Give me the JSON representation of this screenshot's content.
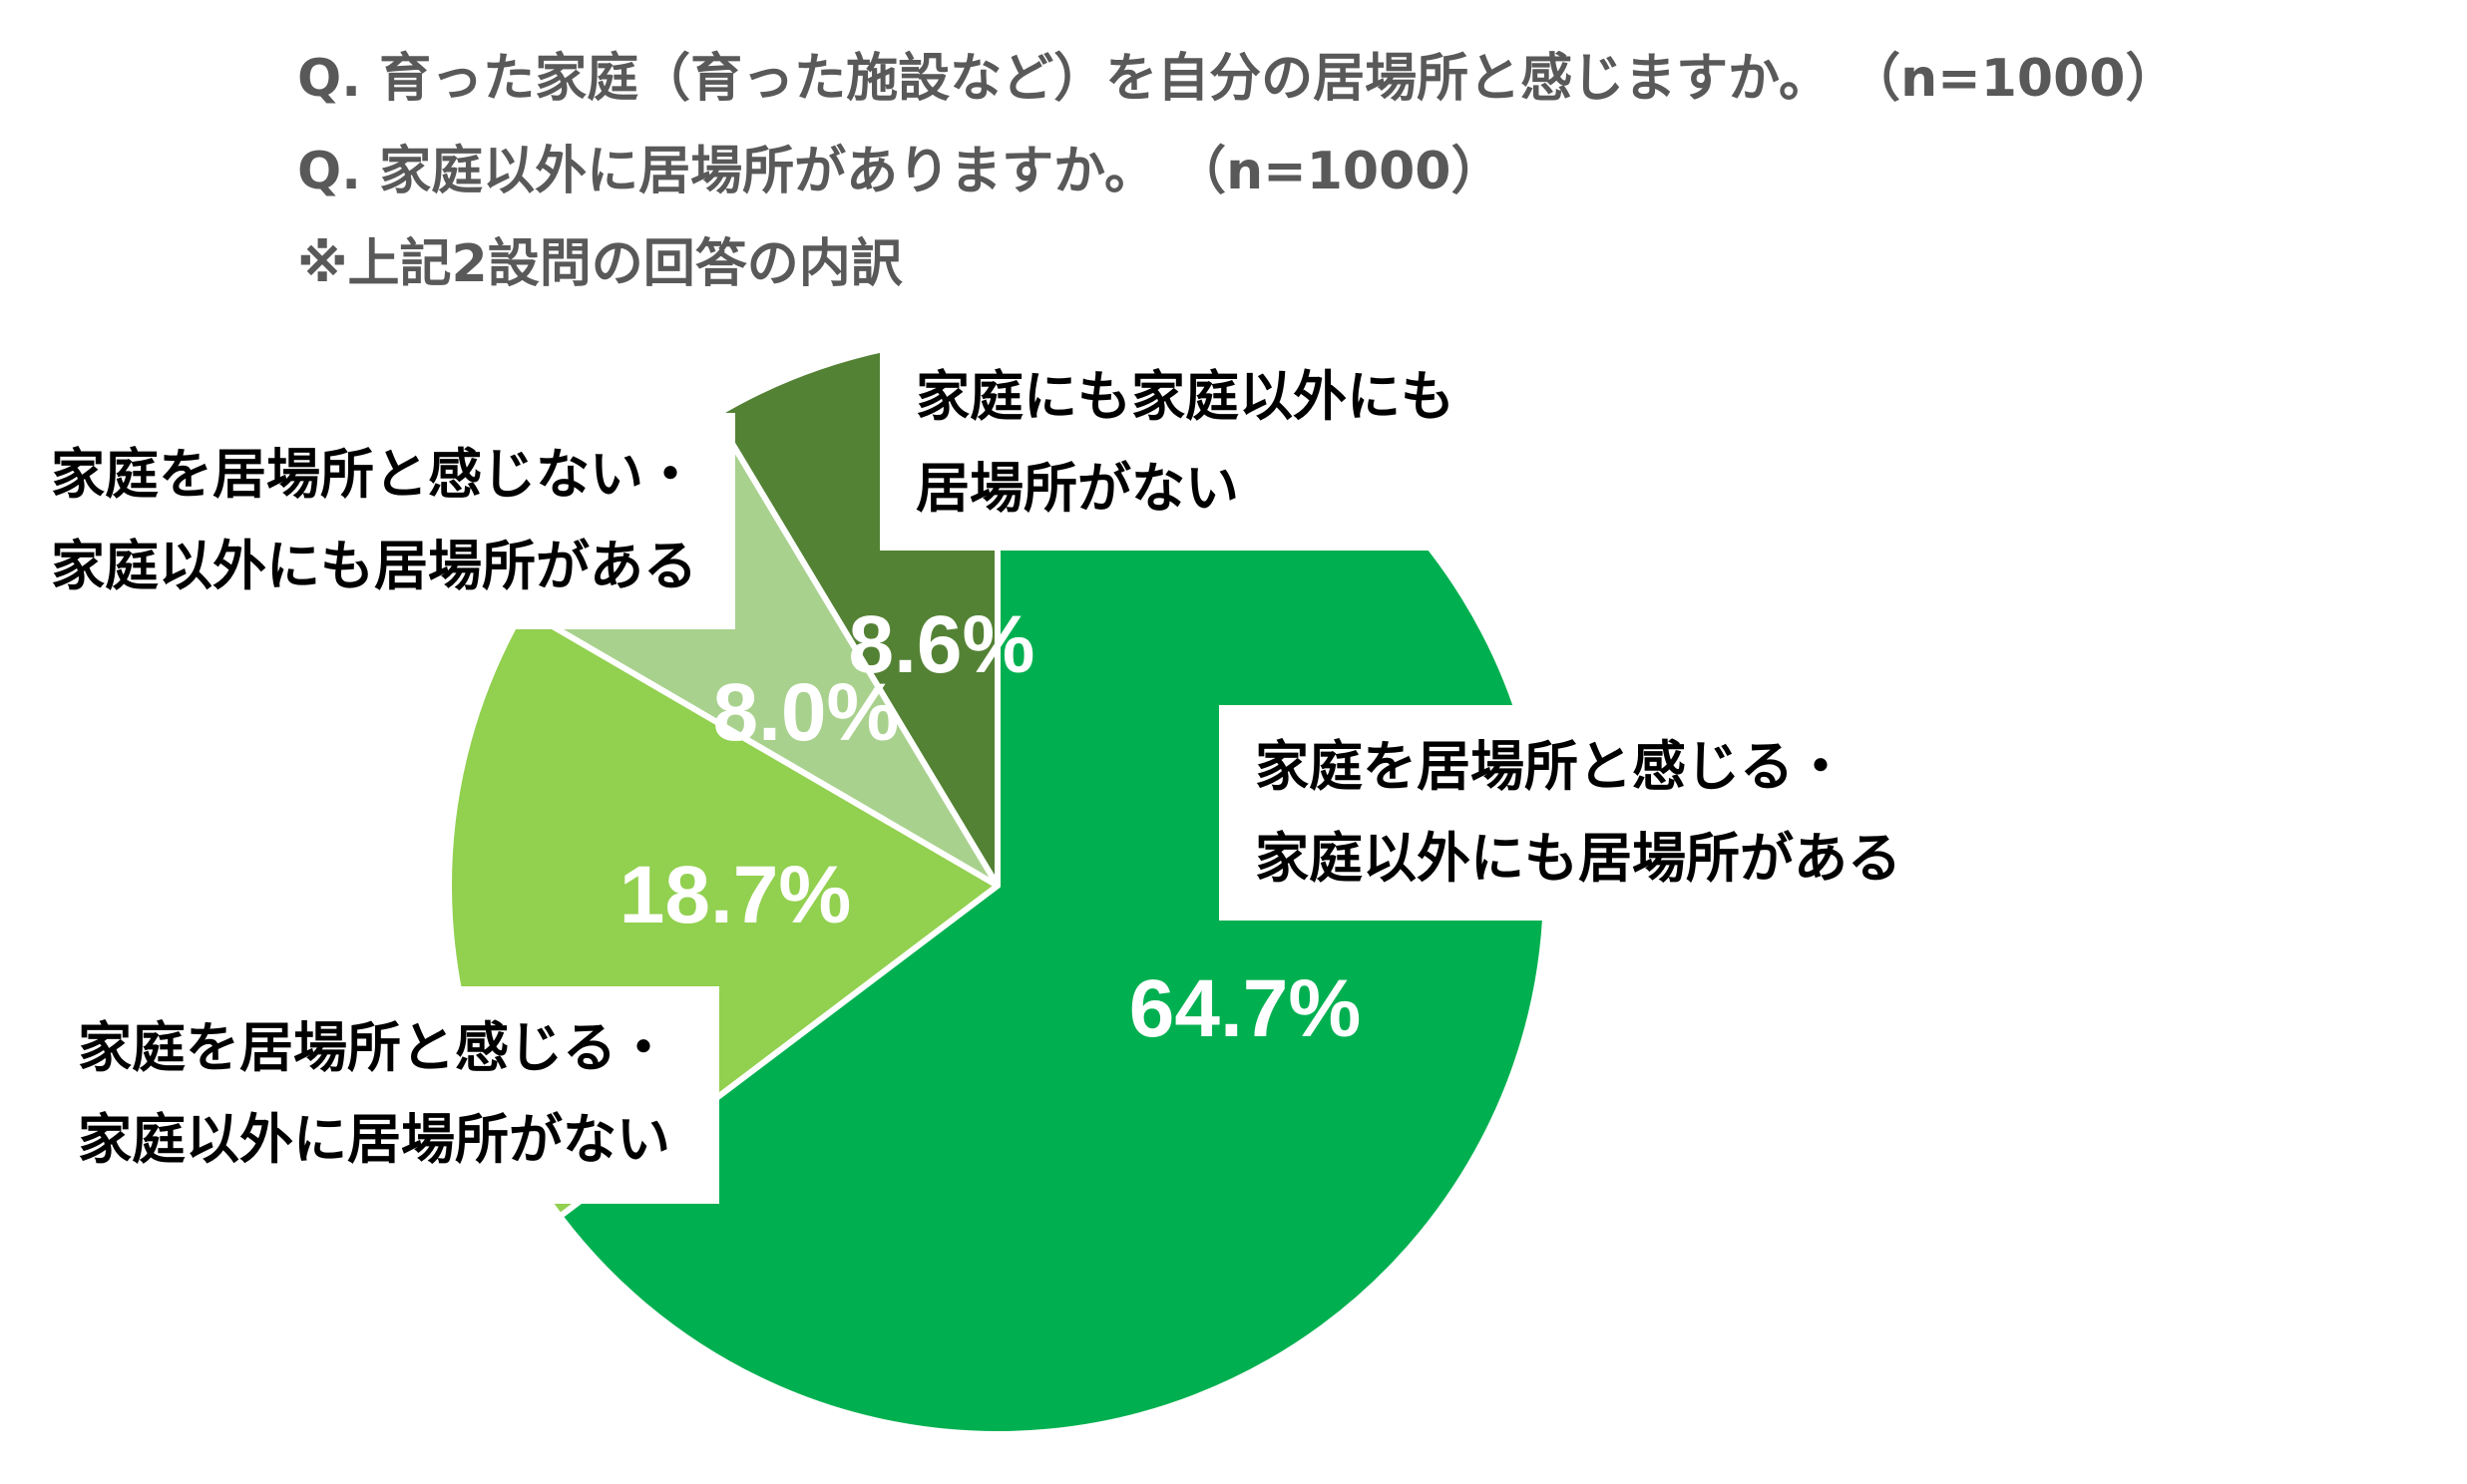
{
  "title": {
    "lines": [
      "Q. 育った家庭（育った施設など）を自分の居場所と感じますか。 （n=1000）",
      "Q. 家庭以外に居場所がありますか。 （n=1000）",
      "※上記2設問の回答の内訳"
    ]
  },
  "chart_data": {
    "type": "pie",
    "title": "※上記2設問の回答の内訳",
    "questions": [
      "Q. 育った家庭（育った施設など）を自分の居場所と感じますか。（n=1000）",
      "Q. 家庭以外に居場所がありますか。（n=1000）"
    ],
    "n": 1000,
    "start_angle_deg": 0,
    "direction": "clockwise",
    "unit": "%",
    "categories": [
      "家庭を居場所と感じる・家庭以外にも居場所がある",
      "家庭を居場所と感じる・家庭以外に居場所がない",
      "家庭を居場所と感じない・家庭以外にも居場所がある",
      "家庭にも家庭以外にも居場所がない"
    ],
    "label_lines": [
      [
        "家庭を居場所と感じる・",
        "家庭以外にも居場所がある"
      ],
      [
        "家庭を居場所と感じる・",
        "家庭以外に居場所がない"
      ],
      [
        "家庭を居場所と感じない・",
        "家庭以外にも居場所がある"
      ],
      [
        "家庭にも家庭以外にも",
        "居場所がない"
      ]
    ],
    "values": [
      64.7,
      18.7,
      8.0,
      8.6
    ],
    "value_labels": [
      "64.7%",
      "18.7%",
      "8.0%",
      "8.6%"
    ],
    "colors": [
      "#00B050",
      "#92D050",
      "#A9D18E",
      "#548235"
    ],
    "legend": "none",
    "data_labels": "inside slices, category labels in white callout boxes"
  }
}
